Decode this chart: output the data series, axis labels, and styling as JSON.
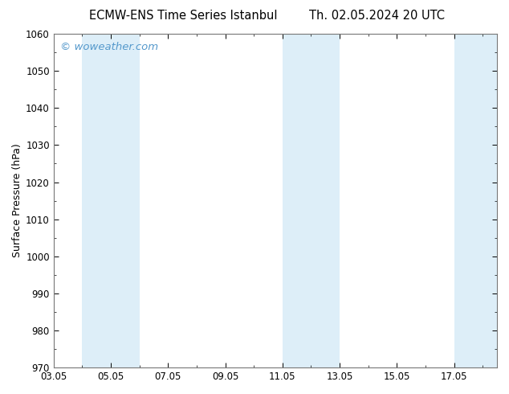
{
  "title_left": "ECMW-ENS Time Series Istanbul",
  "title_right": "Th. 02.05.2024 20 UTC",
  "ylabel": "Surface Pressure (hPa)",
  "xlabel": "",
  "ylim": [
    970,
    1060
  ],
  "yticks": [
    970,
    980,
    990,
    1000,
    1010,
    1020,
    1030,
    1040,
    1050,
    1060
  ],
  "xtick_labels": [
    "03.05",
    "05.05",
    "07.05",
    "09.05",
    "11.05",
    "13.05",
    "15.05",
    "17.05"
  ],
  "xtick_positions": [
    3,
    5,
    7,
    9,
    11,
    13,
    15,
    17
  ],
  "xlim": [
    3.0,
    18.5
  ],
  "watermark": "© woweather.com",
  "watermark_color": "#5599cc",
  "background_color": "#ffffff",
  "plot_bg_color": "#ffffff",
  "shaded_bands": [
    {
      "x_start": 4.0,
      "x_end": 5.0
    },
    {
      "x_start": 5.0,
      "x_end": 6.0
    },
    {
      "x_start": 11.0,
      "x_end": 12.0
    },
    {
      "x_start": 12.0,
      "x_end": 13.0
    },
    {
      "x_start": 17.0,
      "x_end": 18.5
    }
  ],
  "band_color": "#ddeef8",
  "title_fontsize": 10.5,
  "tick_fontsize": 8.5,
  "ylabel_fontsize": 9,
  "watermark_fontsize": 9.5,
  "figsize": [
    6.34,
    4.9
  ],
  "dpi": 100
}
